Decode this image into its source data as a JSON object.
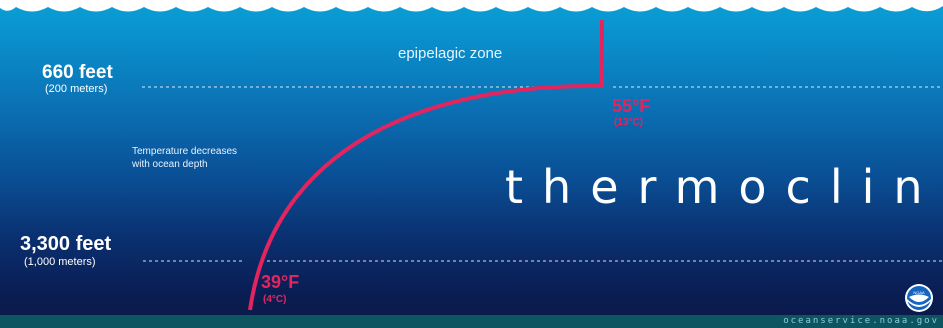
{
  "zone_label": "epipelagic zone",
  "depth_marks": [
    {
      "depth": "660 feet",
      "metric": "(200 meters)"
    },
    {
      "depth": "3,300 feet",
      "metric": "(1,000 meters)"
    }
  ],
  "note_lines": [
    "Temperature decreases",
    "with ocean depth"
  ],
  "title": "thermocline",
  "temps": [
    {
      "f": "55°F",
      "c": "(13°C)"
    },
    {
      "f": "39°F",
      "c": "(4°C)"
    }
  ],
  "footer_url": "oceanservice.noaa.gov",
  "colors": {
    "curve": "#e3255f",
    "text": "#ffffff",
    "seafloor": "#0d5560"
  },
  "icons": {
    "waves": "ocean-surface-waves",
    "logo": "noaa-logo-icon"
  }
}
